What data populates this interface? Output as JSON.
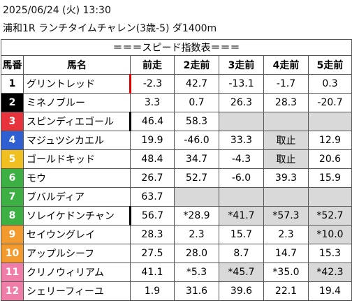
{
  "header": {
    "datetime": "2025/06/24 (火) 13:30",
    "race": "浦和1R ランチタイムチャレン(3歳-5) ダ1400m"
  },
  "table": {
    "title": "＝＝＝スピード指数表＝＝＝",
    "columns": [
      "馬番",
      "馬名",
      "前走",
      "2走前",
      "3走前",
      "4走前",
      "5走前"
    ],
    "rows": [
      [
        "1",
        "グリントレッド",
        "-2.3",
        "42.7",
        "-13.1",
        "-1.7",
        "0.3"
      ],
      [
        "2",
        "ミネノブルー",
        "3.3",
        "0.7",
        "26.3",
        "28.3",
        "-20.7"
      ],
      [
        "3",
        "スピンディエゴール",
        "46.4",
        "58.3"
      ],
      [
        "4",
        "マジュツシカエル",
        "19.9",
        "-46.0",
        "33.3",
        "取止",
        "12.9"
      ],
      [
        "5",
        "ゴールドキッド",
        "48.4",
        "34.7",
        "-4.3",
        "取止",
        "20.6"
      ],
      [
        "6",
        "モウ",
        "26.7",
        "52.7",
        "-6.0",
        "39.3",
        "15.9"
      ],
      [
        "7",
        "ブバルディア",
        "63.7"
      ],
      [
        "8",
        "ソレイケドンチャン",
        "56.7",
        "*28.9",
        "*41.7",
        "*57.3",
        "*52.7"
      ],
      [
        "9",
        "セイウングレイ",
        "28.3",
        "2.3",
        "15.7",
        "2.3",
        "*10.0"
      ],
      [
        "10",
        "アップルシーフ",
        "27.5",
        "28.0",
        "8.7",
        "14.7",
        "15.3"
      ],
      [
        "11",
        "クリノウィリアム",
        "41.1",
        "*5.3",
        "*45.7",
        "*35.0",
        "*42.3"
      ],
      [
        "12",
        "シェリーフィーユ",
        "1.9",
        "31.6",
        "39.6",
        "22.1",
        "19.4"
      ]
    ]
  }
}
